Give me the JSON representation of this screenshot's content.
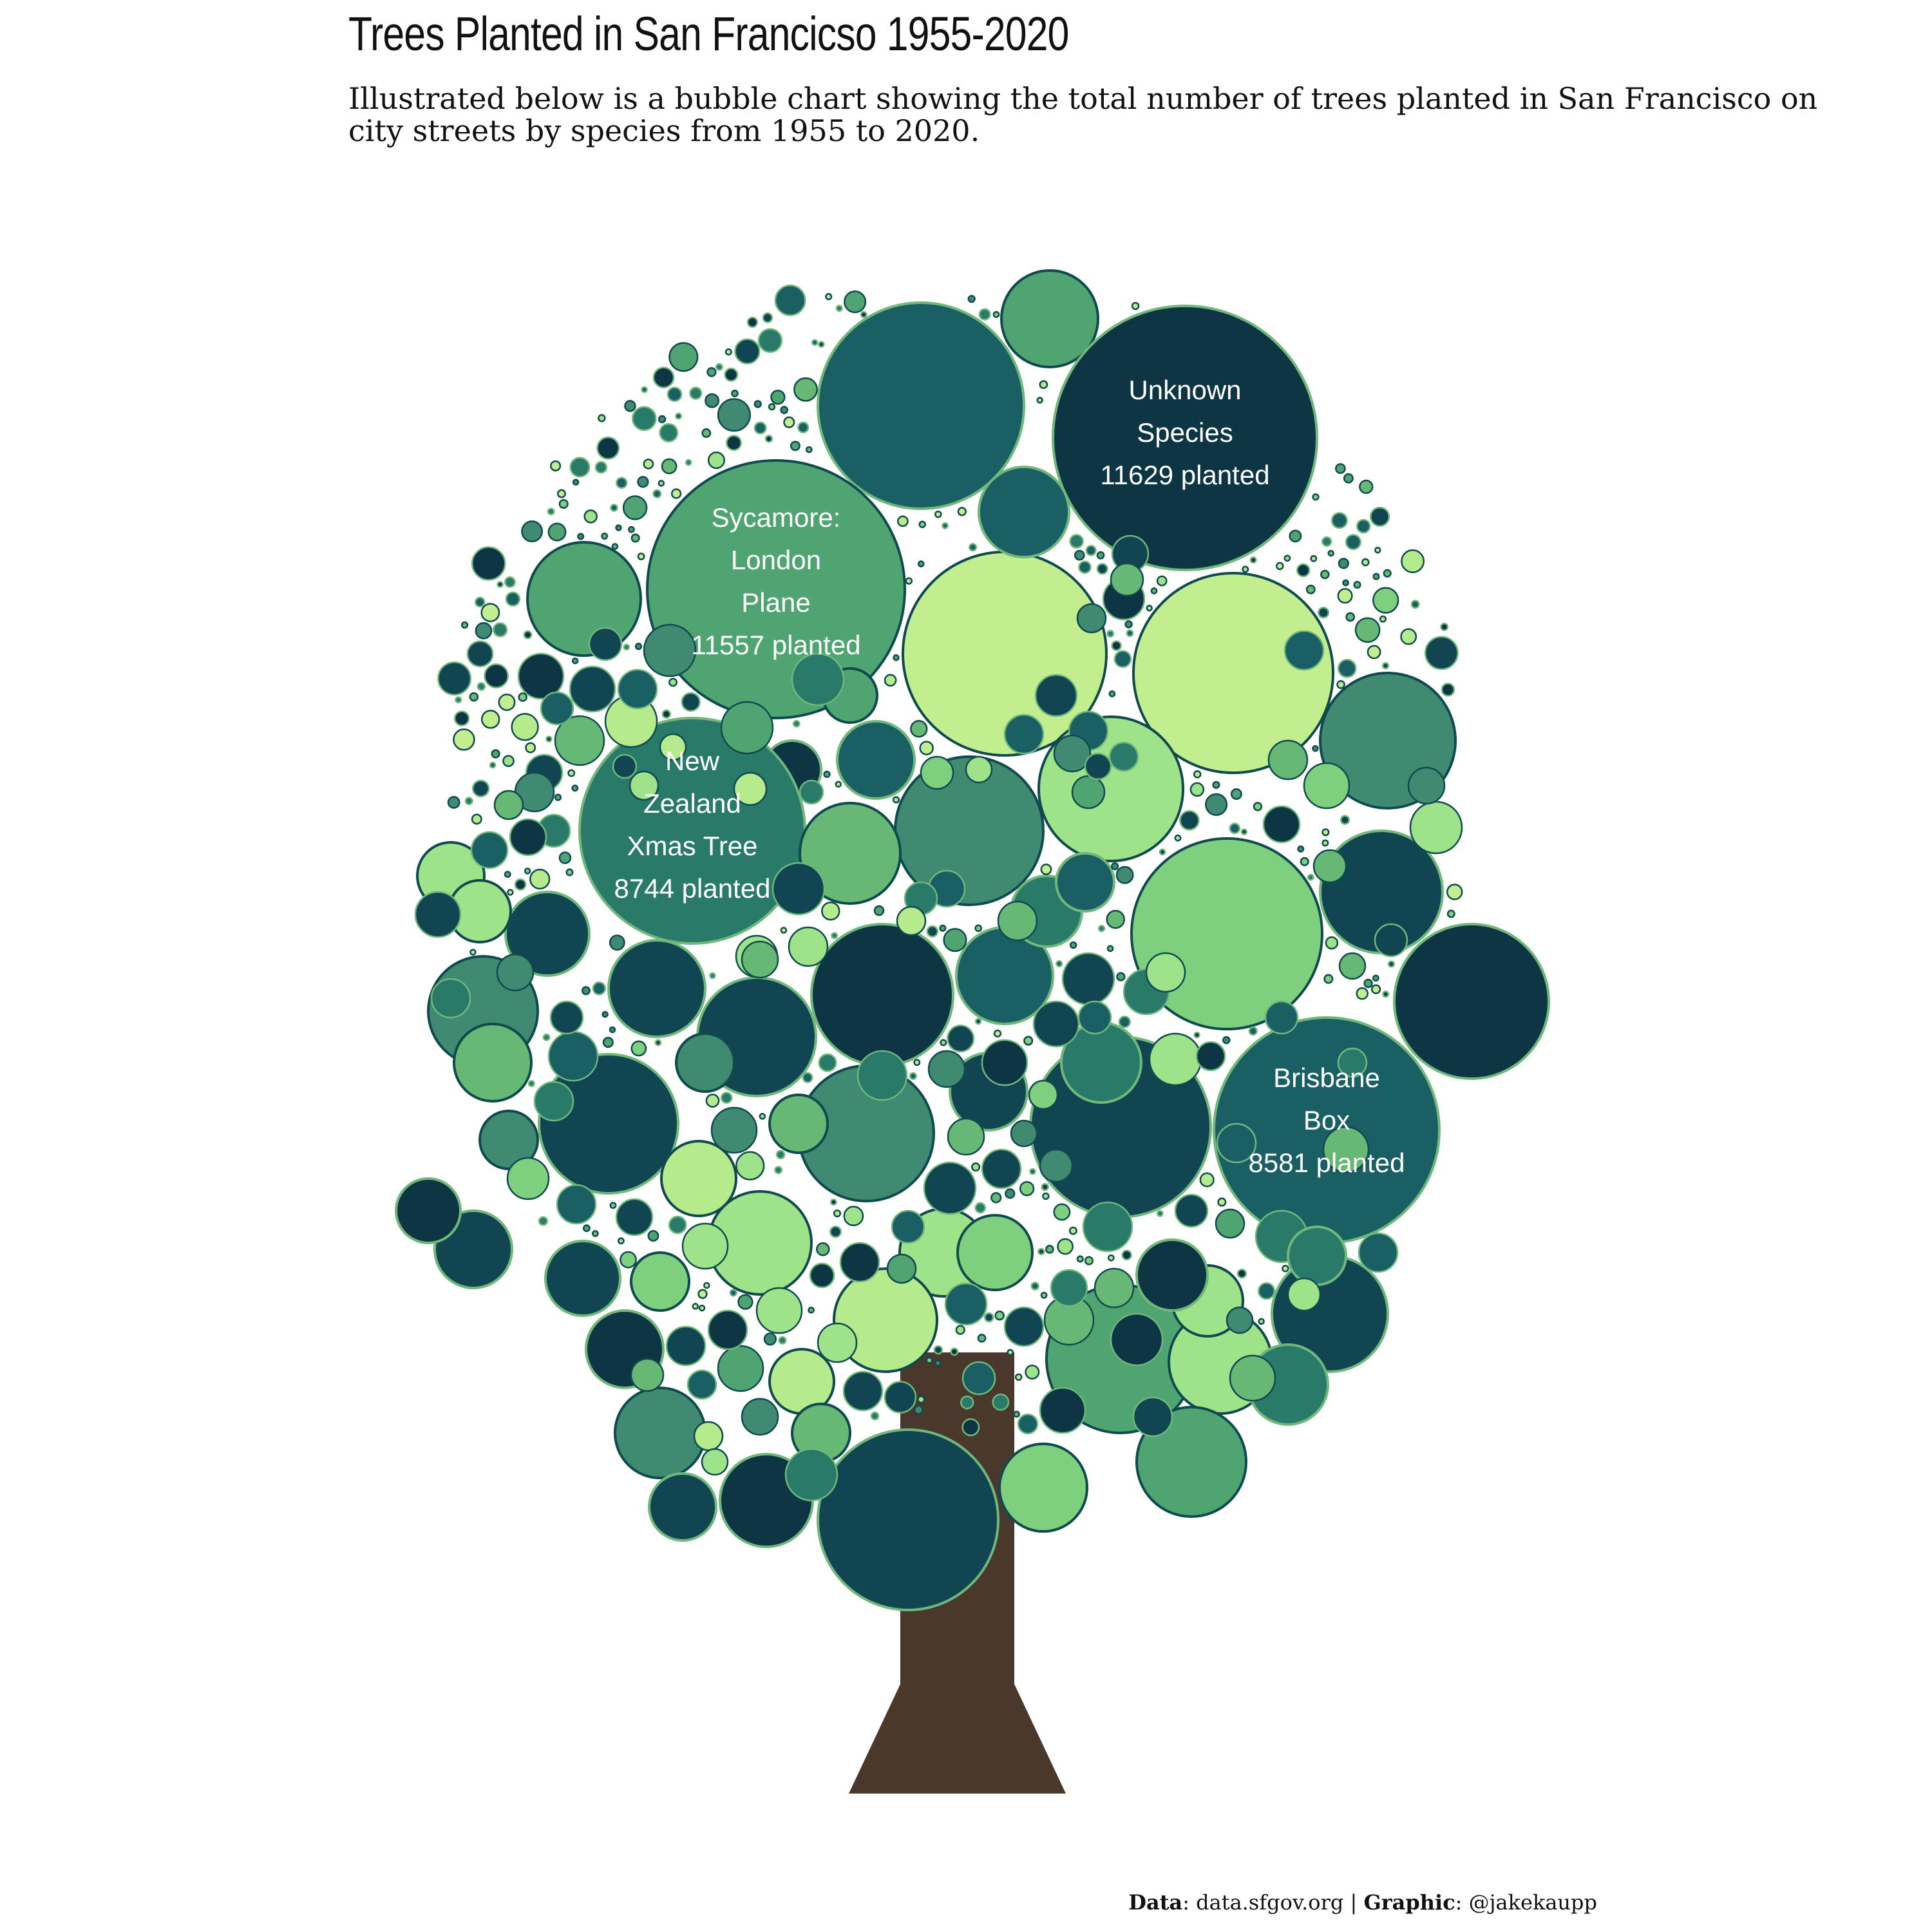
{
  "title": "Trees Planted in San Francicso 1955-2020",
  "subtitle": "Illustrated below is a bubble chart showing the total number of trees planted in San Francisco on city streets by species from 1955 to 2020.",
  "caption": {
    "data_label": "Data",
    "data_value": ": data.sfgov.org | ",
    "graphic_label": "Graphic",
    "graphic_value": ": @jakekaupp"
  },
  "colors": {
    "trunk": "#4a382c",
    "label_text": "#ffffff",
    "palette": [
      "#0d3544",
      "#114552",
      "#1a5f63",
      "#2a7a6a",
      "#3f8a70",
      "#4fa472",
      "#66b874",
      "#7ecf7e",
      "#9ee28a",
      "#b5eb8c",
      "#c3ee90"
    ]
  },
  "chart_data": {
    "type": "bubble",
    "title": "Trees Planted in San Francicso 1955-2020",
    "labeled_species": [
      {
        "species": "Unknown Species",
        "lines": [
          "Unknown",
          "Species",
          "11629 planted"
        ],
        "planted": 11629
      },
      {
        "species": "Sycamore: London Plane",
        "lines": [
          "Sycamore:",
          "London",
          "Plane",
          "11557 planted"
        ],
        "planted": 11557
      },
      {
        "species": "New Zealand Xmas Tree",
        "lines": [
          "New",
          "Zealand",
          "Xmas Tree",
          "8744 planted"
        ],
        "planted": 8744
      },
      {
        "species": "Brisbane Box",
        "lines": [
          "Brisbane",
          "Box",
          "8581 planted"
        ],
        "planted": 8581
      }
    ]
  }
}
